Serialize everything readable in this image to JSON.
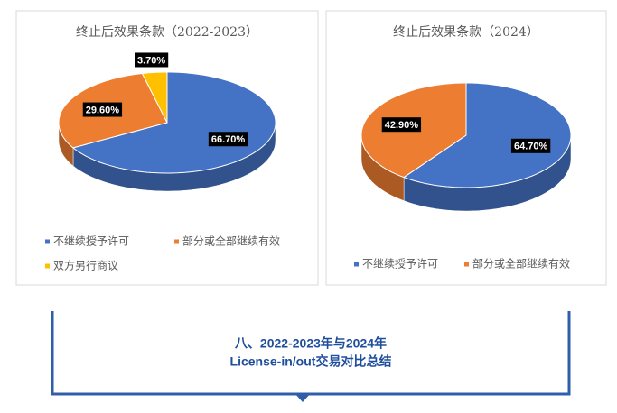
{
  "chart_data": [
    {
      "type": "pie3d",
      "title": "终止后效果条款（2022-2023）",
      "categories": [
        "不继续授予许可",
        "部分或全部继续有效",
        "双方另行商议"
      ],
      "values": [
        66.7,
        29.6,
        3.7
      ],
      "value_labels": [
        "66.70%",
        "29.60%",
        "3.70%"
      ],
      "colors": [
        "#4472c4",
        "#ed7d31",
        "#ffc000"
      ]
    },
    {
      "type": "pie3d",
      "title": "终止后效果条款（2024）",
      "categories": [
        "不继续授予许可",
        "部分或全部继续有效"
      ],
      "values": [
        64.7,
        42.9
      ],
      "value_labels": [
        "64.70%",
        "42.90%"
      ],
      "colors": [
        "#4472c4",
        "#ed7d31"
      ]
    }
  ],
  "banner": {
    "lines": [
      "八、2022-2023年与2024年",
      "License-in/out交易对比总结"
    ]
  }
}
